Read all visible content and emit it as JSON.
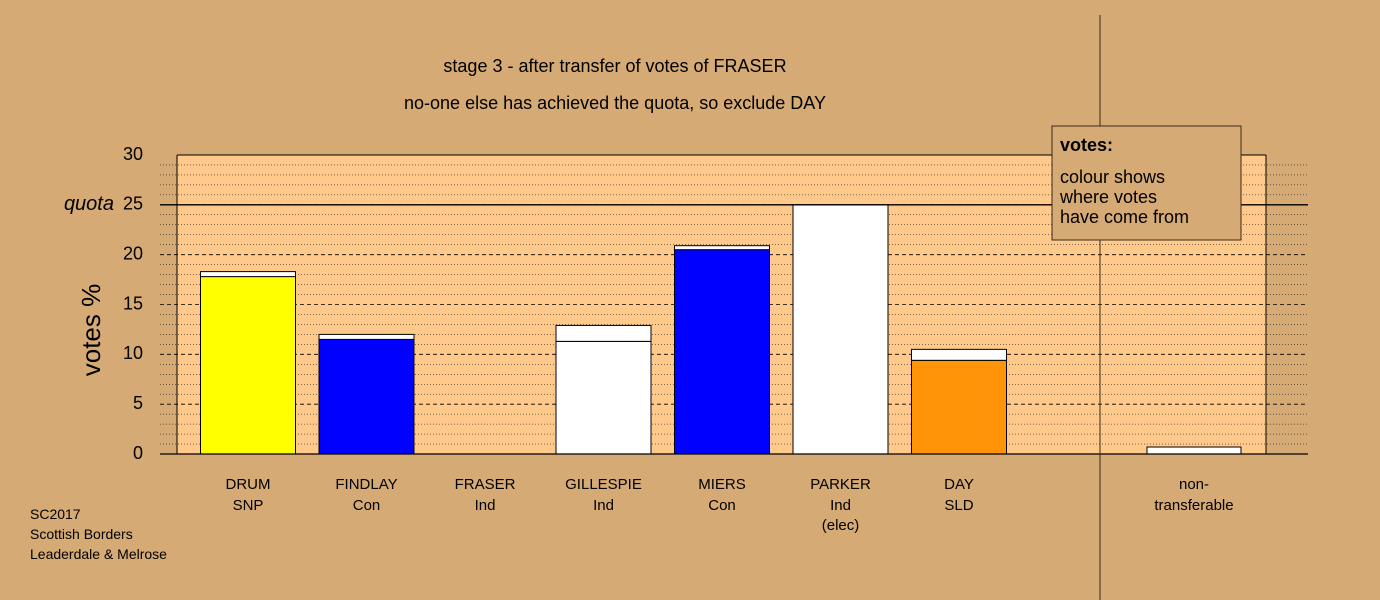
{
  "chart_data": {
    "type": "bar",
    "title": "stage 3 - after transfer of votes of FRASER",
    "subtitle": "no-one else has achieved the quota, so exclude DAY",
    "ylabel": "votes %",
    "ylim": [
      0,
      30
    ],
    "yticks": [
      "0",
      "5",
      "10",
      "15",
      "20",
      "25",
      "30"
    ],
    "quota": {
      "value": 25,
      "label": "quota"
    },
    "grid": true,
    "categories": [
      {
        "name": "DRUM",
        "party": "SNP",
        "note": ""
      },
      {
        "name": "FINDLAY",
        "party": "Con",
        "note": ""
      },
      {
        "name": "FRASER",
        "party": "Ind",
        "note": ""
      },
      {
        "name": "GILLESPIE",
        "party": "Ind",
        "note": ""
      },
      {
        "name": "MIERS",
        "party": "Con",
        "note": ""
      },
      {
        "name": "PARKER",
        "party": "Ind",
        "note": "(elec)"
      },
      {
        "name": "DAY",
        "party": "SLD",
        "note": ""
      }
    ],
    "first_preference_votes": [
      17.8,
      11.5,
      0,
      11.3,
      20.5,
      25.0,
      9.4
    ],
    "transferred_votes": [
      0.5,
      0.5,
      0,
      1.6,
      0.4,
      0,
      1.1
    ],
    "bar_colors": [
      "#ffff00",
      "#0000ff",
      "#ffffff",
      "#ffffff",
      "#0000ff",
      "#ffffff",
      "#ff9408"
    ],
    "transfer_color": "#ffffff",
    "nontransferable": {
      "label_line1": "non-",
      "label_line2": "transferable",
      "value": 0.7
    },
    "legend": {
      "placement": "top-right",
      "heading": "votes:",
      "lines": [
        "colour shows",
        "where votes",
        "have come from"
      ]
    }
  },
  "footer": [
    "SC2017",
    "Scottish Borders",
    "Leaderdale & Melrose"
  ],
  "colors": {
    "background": "#d5aa75",
    "plot_area": "#fec98a"
  }
}
